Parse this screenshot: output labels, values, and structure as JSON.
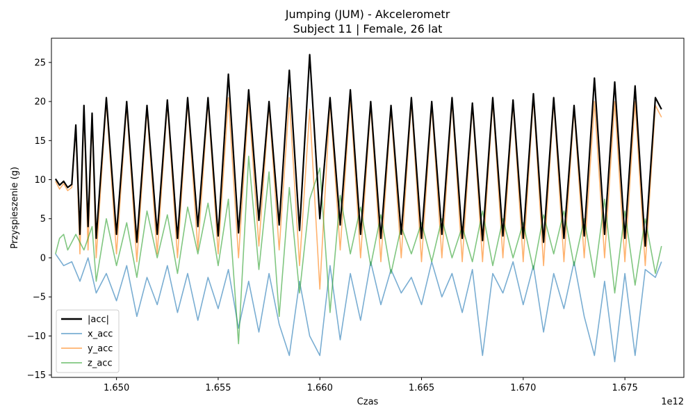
{
  "chart_data": {
    "type": "line",
    "title": "Jumping (JUM) - Akcelerometr",
    "subtitle": "Subject 11 | Female, 26 lat",
    "xlabel": "Czas",
    "ylabel": "Przyspieszenie (g)",
    "x_offset_label": "1e12",
    "xlim": [
      1.6468,
      1.6779
    ],
    "ylim": [
      -15.3,
      28.1
    ],
    "x_ticks": [
      1.65,
      1.655,
      1.66,
      1.665,
      1.67,
      1.675
    ],
    "x_tick_labels": [
      "1.650",
      "1.655",
      "1.660",
      "1.665",
      "1.670",
      "1.675"
    ],
    "y_ticks": [
      -15,
      -10,
      -5,
      0,
      5,
      10,
      15,
      20,
      25
    ],
    "y_tick_labels": [
      "−15",
      "−10",
      "−5",
      "0",
      "5",
      "10",
      "15",
      "20",
      "25"
    ],
    "grid": false,
    "legend_position": "lower-left",
    "series": [
      {
        "name": "|acc|",
        "color": "#000000",
        "x": [
          1.647,
          1.6472,
          1.6474,
          1.6476,
          1.6478,
          1.648,
          1.6482,
          1.6484,
          1.6486,
          1.6488,
          1.649,
          1.6495,
          1.65,
          1.6505,
          1.651,
          1.6515,
          1.652,
          1.6525,
          1.653,
          1.6535,
          1.654,
          1.6545,
          1.655,
          1.6555,
          1.656,
          1.6565,
          1.657,
          1.6575,
          1.658,
          1.6585,
          1.659,
          1.6595,
          1.66,
          1.6605,
          1.661,
          1.6615,
          1.662,
          1.6625,
          1.663,
          1.6635,
          1.664,
          1.6645,
          1.665,
          1.6655,
          1.666,
          1.6665,
          1.667,
          1.6675,
          1.668,
          1.6685,
          1.669,
          1.6695,
          1.67,
          1.6705,
          1.671,
          1.6715,
          1.672,
          1.6725,
          1.673,
          1.6735,
          1.674,
          1.6745,
          1.675,
          1.6755,
          1.676,
          1.6765,
          1.6768
        ],
        "values": [
          10.1,
          9.3,
          9.8,
          9.0,
          9.4,
          17.0,
          3.0,
          19.5,
          4.0,
          18.5,
          2.5,
          20.5,
          3.0,
          20.0,
          2.0,
          19.5,
          3.0,
          20.2,
          2.5,
          20.5,
          4.0,
          20.5,
          2.8,
          23.5,
          3.2,
          21.5,
          4.8,
          20.0,
          4.2,
          24.0,
          3.5,
          26.0,
          5.0,
          20.5,
          4.2,
          21.5,
          3.0,
          20.0,
          2.5,
          19.5,
          3.0,
          20.5,
          2.5,
          20.0,
          3.0,
          20.5,
          2.5,
          19.8,
          2.2,
          20.5,
          2.8,
          20.2,
          2.5,
          21.0,
          2.0,
          20.5,
          2.5,
          19.5,
          2.8,
          23.0,
          3.0,
          22.5,
          2.5,
          22.0,
          1.5,
          20.5,
          19.0
        ]
      },
      {
        "name": "x_acc",
        "color": "#1f77b4",
        "x": [
          1.647,
          1.6474,
          1.6478,
          1.6482,
          1.6486,
          1.649,
          1.6495,
          1.65,
          1.6505,
          1.651,
          1.6515,
          1.652,
          1.6525,
          1.653,
          1.6535,
          1.654,
          1.6545,
          1.655,
          1.6555,
          1.656,
          1.6565,
          1.657,
          1.6575,
          1.658,
          1.6585,
          1.659,
          1.6595,
          1.66,
          1.6605,
          1.661,
          1.6615,
          1.662,
          1.6625,
          1.663,
          1.6635,
          1.664,
          1.6645,
          1.665,
          1.6655,
          1.666,
          1.6665,
          1.667,
          1.6675,
          1.668,
          1.6685,
          1.669,
          1.6695,
          1.67,
          1.6705,
          1.671,
          1.6715,
          1.672,
          1.6725,
          1.673,
          1.6735,
          1.674,
          1.6745,
          1.675,
          1.6755,
          1.676,
          1.6765,
          1.6768
        ],
        "values": [
          0.5,
          -1.0,
          -0.5,
          -3.0,
          0.0,
          -4.5,
          -2.0,
          -5.5,
          -1.0,
          -7.5,
          -2.5,
          -6.0,
          -1.0,
          -7.0,
          -2.0,
          -8.0,
          -2.5,
          -6.5,
          -1.5,
          -9.0,
          -3.0,
          -9.5,
          -2.0,
          -8.5,
          -12.5,
          -3.0,
          -10.0,
          -12.5,
          -1.0,
          -10.5,
          -2.0,
          -8.0,
          -0.5,
          -6.0,
          -1.5,
          -4.5,
          -2.5,
          -6.0,
          -0.5,
          -5.0,
          -2.0,
          -7.0,
          -1.5,
          -12.5,
          -2.0,
          -4.5,
          -0.5,
          -6.0,
          -1.0,
          -9.5,
          -2.0,
          -6.5,
          -0.5,
          -7.5,
          -12.5,
          -3.0,
          -13.3,
          -2.0,
          -12.5,
          -1.5,
          -2.5,
          -0.5
        ]
      },
      {
        "name": "y_acc",
        "color": "#ff7f0e",
        "x": [
          1.647,
          1.6472,
          1.6474,
          1.6476,
          1.6478,
          1.648,
          1.6482,
          1.6484,
          1.6486,
          1.6488,
          1.649,
          1.6495,
          1.65,
          1.6505,
          1.651,
          1.6515,
          1.652,
          1.6525,
          1.653,
          1.6535,
          1.654,
          1.6545,
          1.655,
          1.6555,
          1.656,
          1.6565,
          1.657,
          1.6575,
          1.658,
          1.6585,
          1.659,
          1.6595,
          1.66,
          1.6605,
          1.661,
          1.6615,
          1.662,
          1.6625,
          1.663,
          1.6635,
          1.664,
          1.6645,
          1.665,
          1.6655,
          1.666,
          1.6665,
          1.667,
          1.6675,
          1.668,
          1.6685,
          1.669,
          1.6695,
          1.67,
          1.6705,
          1.671,
          1.6715,
          1.672,
          1.6725,
          1.673,
          1.6735,
          1.674,
          1.6745,
          1.675,
          1.6755,
          1.676,
          1.6765,
          1.6768
        ],
        "values": [
          9.8,
          8.8,
          9.5,
          8.6,
          9.0,
          16.5,
          0.5,
          19.0,
          1.0,
          18.0,
          0.0,
          20.0,
          0.5,
          19.5,
          -0.5,
          19.0,
          0.5,
          19.8,
          0.0,
          20.0,
          1.0,
          20.0,
          0.5,
          20.5,
          0.0,
          20.0,
          1.5,
          19.5,
          1.0,
          20.5,
          -1.0,
          19.0,
          -4.0,
          20.0,
          1.0,
          20.5,
          0.0,
          19.5,
          -0.5,
          19.0,
          0.0,
          20.0,
          -0.5,
          19.5,
          0.0,
          20.0,
          -0.5,
          19.5,
          -0.5,
          20.0,
          0.0,
          19.8,
          -0.5,
          20.5,
          -1.0,
          20.0,
          -0.5,
          19.0,
          0.0,
          20.0,
          0.0,
          20.0,
          -0.5,
          20.0,
          -1.0,
          19.5,
          18.0
        ]
      },
      {
        "name": "z_acc",
        "color": "#2ca02c",
        "x": [
          1.647,
          1.6472,
          1.6474,
          1.6476,
          1.6478,
          1.648,
          1.6484,
          1.6488,
          1.649,
          1.6495,
          1.65,
          1.6505,
          1.651,
          1.6515,
          1.652,
          1.6525,
          1.653,
          1.6535,
          1.654,
          1.6545,
          1.655,
          1.6555,
          1.656,
          1.6565,
          1.657,
          1.6575,
          1.658,
          1.6585,
          1.659,
          1.6595,
          1.66,
          1.6605,
          1.661,
          1.6615,
          1.662,
          1.6625,
          1.663,
          1.6635,
          1.664,
          1.6645,
          1.665,
          1.6655,
          1.666,
          1.6665,
          1.667,
          1.6675,
          1.668,
          1.6685,
          1.669,
          1.6695,
          1.67,
          1.6705,
          1.671,
          1.6715,
          1.672,
          1.6725,
          1.673,
          1.6735,
          1.674,
          1.6745,
          1.675,
          1.6755,
          1.676,
          1.6765,
          1.6768
        ],
        "values": [
          0.5,
          2.5,
          3.0,
          1.0,
          2.0,
          3.0,
          1.0,
          4.0,
          -3.0,
          5.0,
          -1.0,
          4.5,
          -2.5,
          6.0,
          0.0,
          5.5,
          -2.0,
          6.5,
          0.5,
          7.0,
          -1.0,
          7.5,
          -11.0,
          13.0,
          -1.5,
          11.0,
          -7.5,
          9.0,
          -4.5,
          7.5,
          11.5,
          -7.0,
          8.0,
          0.5,
          6.5,
          -1.0,
          5.5,
          -2.0,
          4.0,
          0.5,
          4.5,
          -0.5,
          5.0,
          0.0,
          4.0,
          -0.5,
          6.0,
          -1.0,
          5.0,
          0.0,
          4.5,
          -1.5,
          5.5,
          0.5,
          6.0,
          -1.0,
          5.0,
          -2.5,
          7.5,
          -4.5,
          6.0,
          -3.5,
          5.0,
          -2.0,
          1.5
        ]
      }
    ]
  }
}
